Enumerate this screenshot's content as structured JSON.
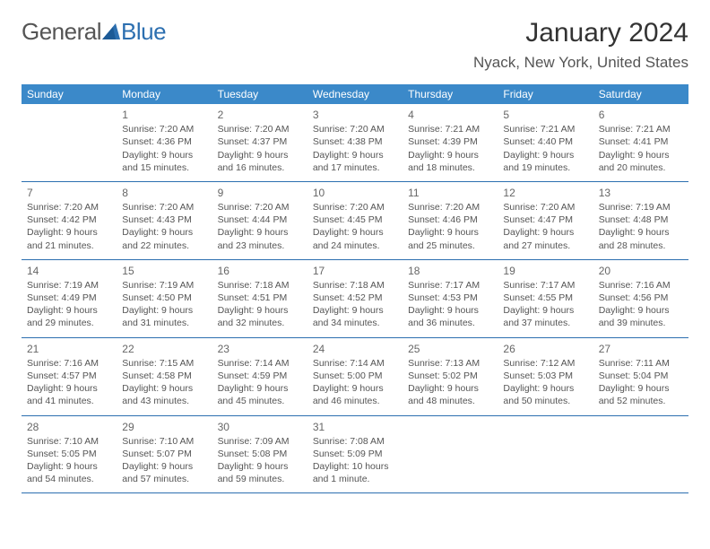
{
  "logo": {
    "general": "General",
    "blue": "Blue"
  },
  "title": "January 2024",
  "location": "Nyack, New York, United States",
  "colors": {
    "header_bg": "#3b89c9",
    "header_text": "#ffffff",
    "row_border": "#2c6fb0",
    "text": "#555555",
    "logo_blue": "#2c6fb0",
    "page_bg": "#ffffff"
  },
  "day_headers": [
    "Sunday",
    "Monday",
    "Tuesday",
    "Wednesday",
    "Thursday",
    "Friday",
    "Saturday"
  ],
  "weeks": [
    [
      {},
      {
        "n": "1",
        "sr": "Sunrise: 7:20 AM",
        "ss": "Sunset: 4:36 PM",
        "d1": "Daylight: 9 hours",
        "d2": "and 15 minutes."
      },
      {
        "n": "2",
        "sr": "Sunrise: 7:20 AM",
        "ss": "Sunset: 4:37 PM",
        "d1": "Daylight: 9 hours",
        "d2": "and 16 minutes."
      },
      {
        "n": "3",
        "sr": "Sunrise: 7:20 AM",
        "ss": "Sunset: 4:38 PM",
        "d1": "Daylight: 9 hours",
        "d2": "and 17 minutes."
      },
      {
        "n": "4",
        "sr": "Sunrise: 7:21 AM",
        "ss": "Sunset: 4:39 PM",
        "d1": "Daylight: 9 hours",
        "d2": "and 18 minutes."
      },
      {
        "n": "5",
        "sr": "Sunrise: 7:21 AM",
        "ss": "Sunset: 4:40 PM",
        "d1": "Daylight: 9 hours",
        "d2": "and 19 minutes."
      },
      {
        "n": "6",
        "sr": "Sunrise: 7:21 AM",
        "ss": "Sunset: 4:41 PM",
        "d1": "Daylight: 9 hours",
        "d2": "and 20 minutes."
      }
    ],
    [
      {
        "n": "7",
        "sr": "Sunrise: 7:20 AM",
        "ss": "Sunset: 4:42 PM",
        "d1": "Daylight: 9 hours",
        "d2": "and 21 minutes."
      },
      {
        "n": "8",
        "sr": "Sunrise: 7:20 AM",
        "ss": "Sunset: 4:43 PM",
        "d1": "Daylight: 9 hours",
        "d2": "and 22 minutes."
      },
      {
        "n": "9",
        "sr": "Sunrise: 7:20 AM",
        "ss": "Sunset: 4:44 PM",
        "d1": "Daylight: 9 hours",
        "d2": "and 23 minutes."
      },
      {
        "n": "10",
        "sr": "Sunrise: 7:20 AM",
        "ss": "Sunset: 4:45 PM",
        "d1": "Daylight: 9 hours",
        "d2": "and 24 minutes."
      },
      {
        "n": "11",
        "sr": "Sunrise: 7:20 AM",
        "ss": "Sunset: 4:46 PM",
        "d1": "Daylight: 9 hours",
        "d2": "and 25 minutes."
      },
      {
        "n": "12",
        "sr": "Sunrise: 7:20 AM",
        "ss": "Sunset: 4:47 PM",
        "d1": "Daylight: 9 hours",
        "d2": "and 27 minutes."
      },
      {
        "n": "13",
        "sr": "Sunrise: 7:19 AM",
        "ss": "Sunset: 4:48 PM",
        "d1": "Daylight: 9 hours",
        "d2": "and 28 minutes."
      }
    ],
    [
      {
        "n": "14",
        "sr": "Sunrise: 7:19 AM",
        "ss": "Sunset: 4:49 PM",
        "d1": "Daylight: 9 hours",
        "d2": "and 29 minutes."
      },
      {
        "n": "15",
        "sr": "Sunrise: 7:19 AM",
        "ss": "Sunset: 4:50 PM",
        "d1": "Daylight: 9 hours",
        "d2": "and 31 minutes."
      },
      {
        "n": "16",
        "sr": "Sunrise: 7:18 AM",
        "ss": "Sunset: 4:51 PM",
        "d1": "Daylight: 9 hours",
        "d2": "and 32 minutes."
      },
      {
        "n": "17",
        "sr": "Sunrise: 7:18 AM",
        "ss": "Sunset: 4:52 PM",
        "d1": "Daylight: 9 hours",
        "d2": "and 34 minutes."
      },
      {
        "n": "18",
        "sr": "Sunrise: 7:17 AM",
        "ss": "Sunset: 4:53 PM",
        "d1": "Daylight: 9 hours",
        "d2": "and 36 minutes."
      },
      {
        "n": "19",
        "sr": "Sunrise: 7:17 AM",
        "ss": "Sunset: 4:55 PM",
        "d1": "Daylight: 9 hours",
        "d2": "and 37 minutes."
      },
      {
        "n": "20",
        "sr": "Sunrise: 7:16 AM",
        "ss": "Sunset: 4:56 PM",
        "d1": "Daylight: 9 hours",
        "d2": "and 39 minutes."
      }
    ],
    [
      {
        "n": "21",
        "sr": "Sunrise: 7:16 AM",
        "ss": "Sunset: 4:57 PM",
        "d1": "Daylight: 9 hours",
        "d2": "and 41 minutes."
      },
      {
        "n": "22",
        "sr": "Sunrise: 7:15 AM",
        "ss": "Sunset: 4:58 PM",
        "d1": "Daylight: 9 hours",
        "d2": "and 43 minutes."
      },
      {
        "n": "23",
        "sr": "Sunrise: 7:14 AM",
        "ss": "Sunset: 4:59 PM",
        "d1": "Daylight: 9 hours",
        "d2": "and 45 minutes."
      },
      {
        "n": "24",
        "sr": "Sunrise: 7:14 AM",
        "ss": "Sunset: 5:00 PM",
        "d1": "Daylight: 9 hours",
        "d2": "and 46 minutes."
      },
      {
        "n": "25",
        "sr": "Sunrise: 7:13 AM",
        "ss": "Sunset: 5:02 PM",
        "d1": "Daylight: 9 hours",
        "d2": "and 48 minutes."
      },
      {
        "n": "26",
        "sr": "Sunrise: 7:12 AM",
        "ss": "Sunset: 5:03 PM",
        "d1": "Daylight: 9 hours",
        "d2": "and 50 minutes."
      },
      {
        "n": "27",
        "sr": "Sunrise: 7:11 AM",
        "ss": "Sunset: 5:04 PM",
        "d1": "Daylight: 9 hours",
        "d2": "and 52 minutes."
      }
    ],
    [
      {
        "n": "28",
        "sr": "Sunrise: 7:10 AM",
        "ss": "Sunset: 5:05 PM",
        "d1": "Daylight: 9 hours",
        "d2": "and 54 minutes."
      },
      {
        "n": "29",
        "sr": "Sunrise: 7:10 AM",
        "ss": "Sunset: 5:07 PM",
        "d1": "Daylight: 9 hours",
        "d2": "and 57 minutes."
      },
      {
        "n": "30",
        "sr": "Sunrise: 7:09 AM",
        "ss": "Sunset: 5:08 PM",
        "d1": "Daylight: 9 hours",
        "d2": "and 59 minutes."
      },
      {
        "n": "31",
        "sr": "Sunrise: 7:08 AM",
        "ss": "Sunset: 5:09 PM",
        "d1": "Daylight: 10 hours",
        "d2": "and 1 minute."
      },
      {},
      {},
      {}
    ]
  ]
}
